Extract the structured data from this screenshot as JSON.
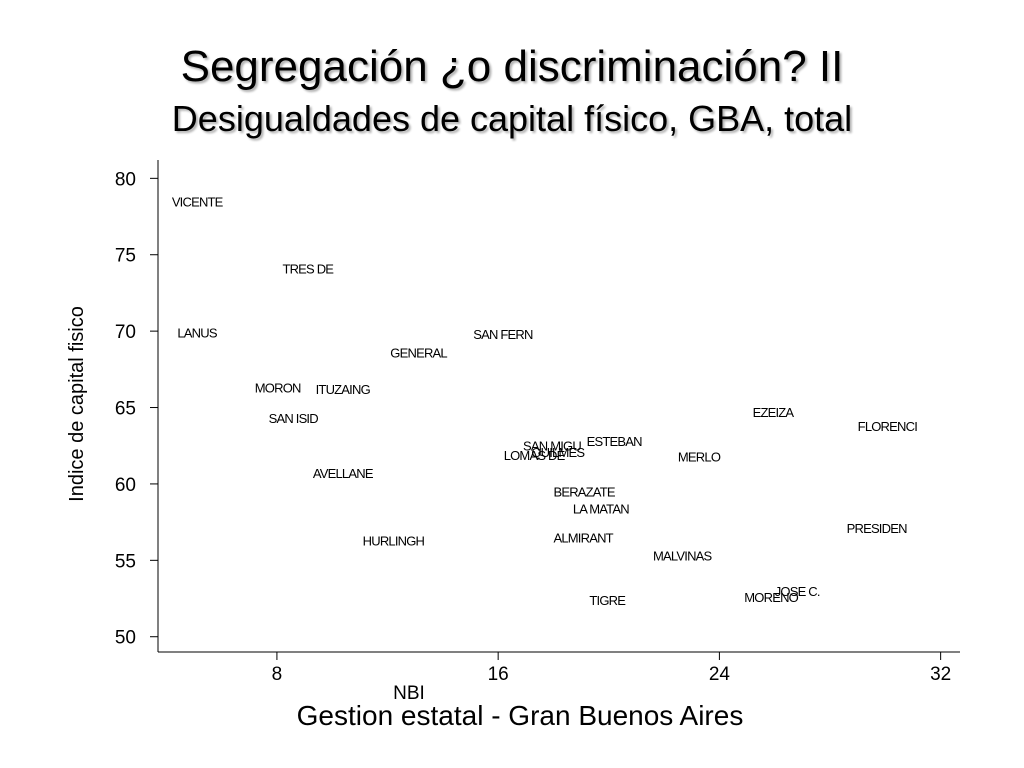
{
  "title": "Segregación ¿o discriminación? II",
  "subtitle": "Desigualdades de capital físico, GBA, total",
  "caption": "Gestion estatal - Gran Buenos Aires",
  "chart_data": {
    "type": "scatter",
    "xlabel": "NBI",
    "ylabel": "Indice de capital fisico",
    "xlim": [
      3.7,
      32.7
    ],
    "ylim": [
      49,
      81.2
    ],
    "xticks": [
      8,
      16,
      24,
      32
    ],
    "yticks": [
      50,
      55,
      60,
      65,
      70,
      75,
      80
    ],
    "marker": "label",
    "points": [
      {
        "label": "VICENTE",
        "x": 4.2,
        "y": 78.5
      },
      {
        "label": "TRES DE",
        "x": 8.2,
        "y": 74.1
      },
      {
        "label": "LANUS",
        "x": 4.4,
        "y": 69.9
      },
      {
        "label": "SAN FERN",
        "x": 15.1,
        "y": 69.8
      },
      {
        "label": "GENERAL",
        "x": 12.1,
        "y": 68.6
      },
      {
        "label": "MORON",
        "x": 7.2,
        "y": 66.3
      },
      {
        "label": "ITUZAING",
        "x": 9.4,
        "y": 66.2
      },
      {
        "label": "SAN ISID",
        "x": 7.7,
        "y": 64.3
      },
      {
        "label": "EZEIZA",
        "x": 25.2,
        "y": 64.7
      },
      {
        "label": "FLORENCI",
        "x": 29.0,
        "y": 63.8
      },
      {
        "label": "ESTEBAN",
        "x": 19.2,
        "y": 62.8
      },
      {
        "label": "SAN MIGU",
        "x": 16.9,
        "y": 62.5
      },
      {
        "label": "QUILMES",
        "x": 17.2,
        "y": 62.1
      },
      {
        "label": "LOMAS DE",
        "x": 16.2,
        "y": 61.9
      },
      {
        "label": "MERLO",
        "x": 22.5,
        "y": 61.8
      },
      {
        "label": "AVELLANE",
        "x": 9.3,
        "y": 60.7
      },
      {
        "label": "BERAZATE",
        "x": 18.0,
        "y": 59.5
      },
      {
        "label": "LA MATAN",
        "x": 18.7,
        "y": 58.4
      },
      {
        "label": "PRESIDEN",
        "x": 28.6,
        "y": 57.1
      },
      {
        "label": "ALMIRANT",
        "x": 18.0,
        "y": 56.5
      },
      {
        "label": "HURLINGH",
        "x": 11.1,
        "y": 56.3
      },
      {
        "label": "MALVINAS",
        "x": 21.6,
        "y": 55.3
      },
      {
        "label": "JOSE C.",
        "x": 26.0,
        "y": 53.0
      },
      {
        "label": "MORENO",
        "x": 24.9,
        "y": 52.6
      },
      {
        "label": "TIGRE",
        "x": 19.3,
        "y": 52.4
      }
    ]
  }
}
